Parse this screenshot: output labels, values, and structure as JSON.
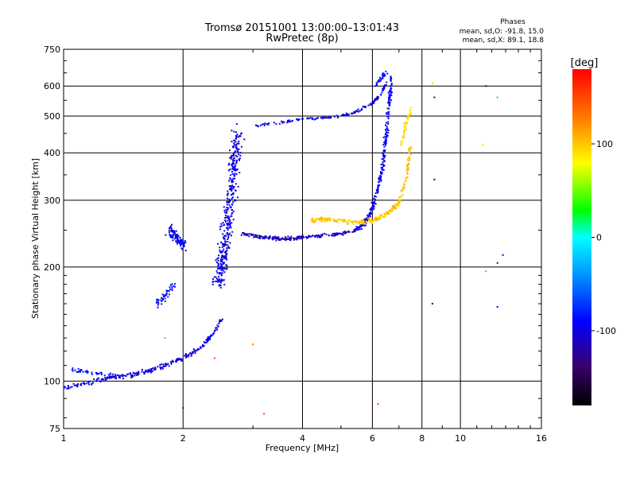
{
  "chart_data": {
    "type": "scatter",
    "title": "Tromsø 20151001 13:00:00–13:01:43",
    "subtitle": "RwPretec (8p)",
    "xlabel": "Frequency [MHz]",
    "ylabel": "Stationary phase Virtual Height [km]",
    "x_scale": "log",
    "y_scale": "log",
    "xlim": [
      1,
      16
    ],
    "ylim": [
      75,
      750
    ],
    "x_ticks": [
      1,
      2,
      4,
      6,
      8,
      10,
      16
    ],
    "x_tick_labels": [
      "1",
      "2",
      "4",
      "6",
      "8",
      "10",
      "16"
    ],
    "y_ticks": [
      75,
      100,
      200,
      300,
      400,
      500,
      600,
      750
    ],
    "y_tick_labels": [
      "75",
      "100",
      "200",
      "300",
      "400",
      "500",
      "600",
      "750"
    ],
    "grid": true,
    "color_by": "phase",
    "colorbar": {
      "label": "[deg]",
      "range": [
        -180,
        180
      ],
      "ticks": [
        100,
        0,
        -100
      ],
      "tick_labels": [
        "100",
        "0",
        "-100"
      ]
    },
    "stats": {
      "title": "Phases",
      "line_o": "mean, sd,O: -91.8, 15.0",
      "line_x": "mean, sd,X: 89.1, 18.8"
    },
    "trace_segments": [
      {
        "name": "low-E",
        "x": [
          1.0,
          1.1,
          1.2,
          1.3,
          1.4,
          1.5,
          1.6,
          1.7,
          1.8,
          1.9,
          2.0,
          2.1,
          2.2,
          2.3,
          2.4,
          2.5
        ],
        "y": [
          96,
          98,
          100,
          102,
          103,
          104,
          106,
          108,
          110,
          112,
          115,
          118,
          122,
          128,
          135,
          145
        ],
        "phase": -100,
        "spread": 0.02,
        "n": 260
      },
      {
        "name": "E-upper",
        "x": [
          1.05,
          1.1,
          1.2,
          1.3,
          1.4
        ],
        "y": [
          107,
          106,
          105,
          104,
          103
        ],
        "phase": -90,
        "spread": 0.015,
        "n": 45
      },
      {
        "name": "Es-cluster-1",
        "x": [
          1.85,
          1.9,
          1.95,
          2.0
        ],
        "y": [
          250,
          240,
          235,
          228
        ],
        "phase": -95,
        "spread": 0.05,
        "n": 90
      },
      {
        "name": "Es-cluster-2",
        "x": [
          1.72,
          1.78,
          1.85,
          1.9
        ],
        "y": [
          160,
          165,
          172,
          178
        ],
        "phase": -90,
        "spread": 0.04,
        "n": 45
      },
      {
        "name": "F1-cusp",
        "x": [
          2.45,
          2.5,
          2.55,
          2.6,
          2.65,
          2.7,
          2.75
        ],
        "y": [
          180,
          200,
          230,
          270,
          320,
          380,
          450
        ],
        "phase": -100,
        "spread": 0.08,
        "n": 380
      },
      {
        "name": "F1-o-mid",
        "x": [
          2.8,
          3.0,
          3.2,
          3.4,
          3.6,
          3.8,
          4.0,
          4.5,
          5.0,
          5.5
        ],
        "y": [
          245,
          242,
          240,
          238,
          237,
          238,
          240,
          242,
          245,
          250
        ],
        "phase": -110,
        "spread": 0.015,
        "n": 230
      },
      {
        "name": "F2-o-rise",
        "x": [
          5.5,
          5.8,
          6.0,
          6.2,
          6.4,
          6.5,
          6.6,
          6.7
        ],
        "y": [
          250,
          265,
          285,
          320,
          380,
          450,
          540,
          630
        ],
        "phase": -95,
        "spread": 0.025,
        "n": 260
      },
      {
        "name": "F2-x-branch",
        "x": [
          4.2,
          4.5,
          5.0,
          5.5,
          6.0,
          6.5,
          7.0,
          7.3,
          7.5
        ],
        "y": [
          265,
          268,
          265,
          262,
          265,
          275,
          295,
          340,
          420
        ],
        "phase": 100,
        "spread": 0.02,
        "n": 300
      },
      {
        "name": "F-upper-track",
        "x": [
          3.0,
          3.5,
          4.0,
          4.5,
          5.0,
          5.5,
          6.0,
          6.3,
          6.5
        ],
        "y": [
          470,
          480,
          490,
          495,
          500,
          515,
          540,
          570,
          610
        ],
        "phase": -100,
        "spread": 0.012,
        "n": 160
      },
      {
        "name": "top-tip",
        "x": [
          6.1,
          6.3,
          6.5
        ],
        "y": [
          600,
          630,
          650
        ],
        "phase": -85,
        "spread": 0.02,
        "n": 30
      },
      {
        "name": "x-top",
        "x": [
          7.1,
          7.3,
          7.5
        ],
        "y": [
          420,
          480,
          520
        ],
        "phase": 95,
        "spread": 0.02,
        "n": 40
      }
    ],
    "isolated_points": [
      {
        "x": 1.8,
        "y": 130,
        "phase": 120
      },
      {
        "x": 2.0,
        "y": 85,
        "phase": -110
      },
      {
        "x": 2.4,
        "y": 115,
        "phase": 150
      },
      {
        "x": 3.0,
        "y": 125,
        "phase": 130
      },
      {
        "x": 3.2,
        "y": 82,
        "phase": 150
      },
      {
        "x": 6.2,
        "y": 87,
        "phase": 160
      },
      {
        "x": 8.5,
        "y": 610,
        "phase": 60
      },
      {
        "x": 8.6,
        "y": 560,
        "phase": -120
      },
      {
        "x": 8.6,
        "y": 340,
        "phase": -110
      },
      {
        "x": 8.5,
        "y": 160,
        "phase": -120
      },
      {
        "x": 11.6,
        "y": 600,
        "phase": -120
      },
      {
        "x": 12.4,
        "y": 560,
        "phase": 30
      },
      {
        "x": 11.4,
        "y": 420,
        "phase": 90
      },
      {
        "x": 12.8,
        "y": 215,
        "phase": -100
      },
      {
        "x": 12.4,
        "y": 205,
        "phase": -120
      },
      {
        "x": 11.6,
        "y": 195,
        "phase": 30
      },
      {
        "x": 12.4,
        "y": 157,
        "phase": -110
      }
    ]
  }
}
